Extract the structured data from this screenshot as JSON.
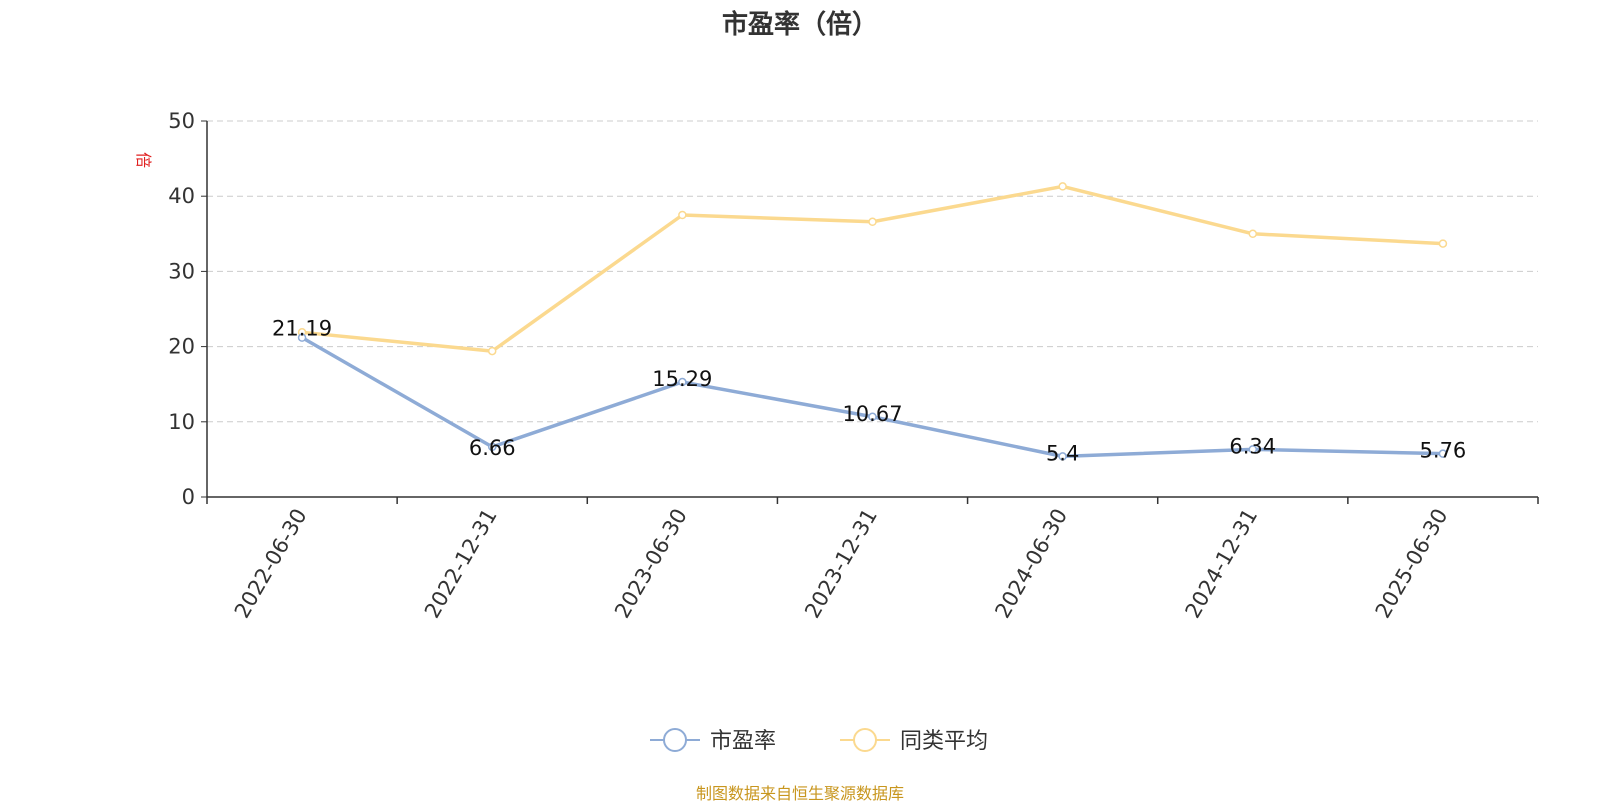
{
  "chart_data": {
    "type": "line",
    "title": "市盈率（倍）",
    "ylabel": "倍",
    "categories": [
      "2022-06-30",
      "2022-12-31",
      "2023-06-30",
      "2023-12-31",
      "2024-06-30",
      "2024-12-31",
      "2025-06-30"
    ],
    "ylim": [
      0,
      50
    ],
    "yticks": [
      0,
      10,
      20,
      30,
      40,
      50
    ],
    "grid": true,
    "legend_position": "bottom",
    "series": [
      {
        "name": "市盈率",
        "color": "#8eabd6",
        "values": [
          21.19,
          6.66,
          15.29,
          10.67,
          5.4,
          6.34,
          5.76
        ],
        "labels": [
          "21.19",
          "6.66",
          "15.29",
          "10.67",
          "5.4",
          "6.34",
          "5.76"
        ]
      },
      {
        "name": "同类平均",
        "color": "#fbd98f",
        "values": [
          21.9,
          19.4,
          37.5,
          36.6,
          41.3,
          35.0,
          33.7
        ]
      }
    ]
  },
  "footer": "制图数据来自恒生聚源数据库"
}
